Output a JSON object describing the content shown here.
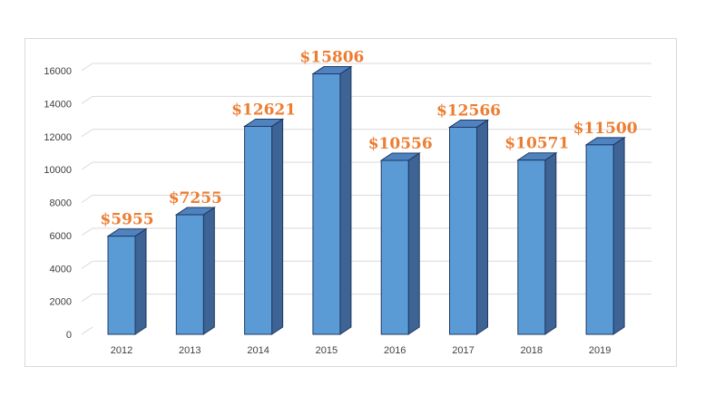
{
  "chart_data": {
    "type": "bar",
    "style": "3d-column",
    "categories": [
      "2012",
      "2013",
      "2014",
      "2015",
      "2016",
      "2017",
      "2018",
      "2019"
    ],
    "values": [
      5955,
      7255,
      12621,
      15806,
      10556,
      12566,
      10571,
      11500
    ],
    "data_labels": [
      "$5955",
      "$7255",
      "$12621",
      "$15806",
      "$10556",
      "$12566",
      "$10571",
      "$11500"
    ],
    "yticks": [
      "0",
      "2000",
      "4000",
      "6000",
      "8000",
      "10000",
      "12000",
      "14000",
      "16000"
    ],
    "ylim": [
      0,
      16000
    ],
    "title": "",
    "xlabel": "",
    "ylabel": "",
    "grid": true,
    "legend": "none",
    "colors": {
      "bar_front": "#5b9bd5",
      "bar_top": "#4f83c0",
      "bar_side": "#3d6494",
      "bar_outline": "#1f3864",
      "data_label": "#ed7d31",
      "gridline": "#d9d9d9",
      "axis_text": "#404040"
    }
  }
}
